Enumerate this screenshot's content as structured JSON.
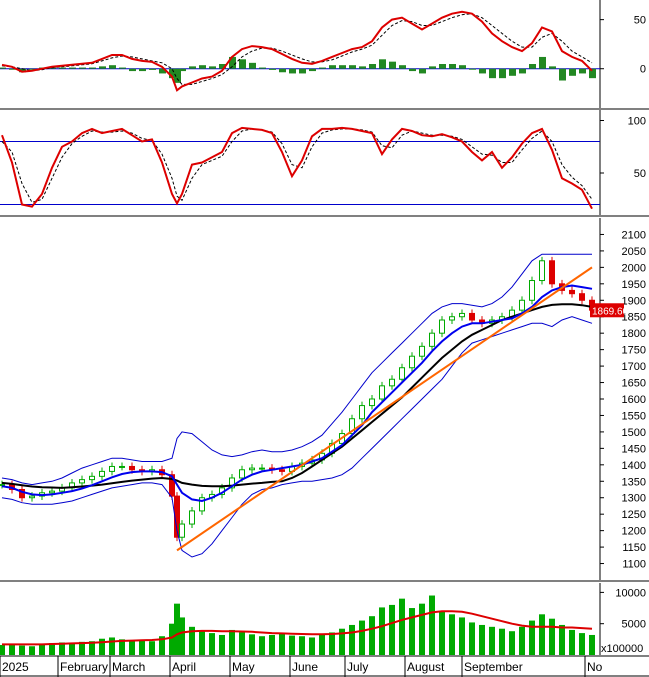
{
  "chart_data": [
    {
      "panel": "macd",
      "type": "line",
      "y_ticks": [
        50,
        0
      ],
      "ylim": [
        -40,
        70
      ],
      "series": [],
      "x": [
        0,
        10,
        20,
        30,
        40,
        50,
        60,
        70,
        80,
        90,
        100,
        110,
        120,
        130,
        140,
        150,
        160,
        170,
        175,
        180,
        190,
        200,
        210,
        220,
        230,
        240,
        250,
        260,
        270,
        280,
        290,
        300,
        310,
        320,
        330,
        340,
        350,
        360,
        370,
        380,
        390,
        400,
        410,
        420,
        430,
        440,
        450,
        460,
        470,
        480,
        490,
        500,
        510,
        520,
        530,
        540,
        550,
        560,
        570,
        580,
        590
      ],
      "macd": [
        4,
        2,
        -3,
        -2,
        0,
        2,
        3,
        4,
        5,
        6,
        10,
        14,
        14,
        10,
        8,
        7,
        2,
        -8,
        -22,
        -18,
        -14,
        -10,
        -8,
        -2,
        12,
        20,
        23,
        22,
        20,
        15,
        10,
        6,
        5,
        8,
        12,
        16,
        20,
        22,
        28,
        42,
        50,
        52,
        46,
        40,
        46,
        52,
        56,
        58,
        56,
        48,
        36,
        28,
        22,
        18,
        26,
        42,
        38,
        18,
        12,
        8,
        -2
      ],
      "signal": [
        3,
        2,
        0,
        -2,
        -1,
        1,
        2,
        3,
        4,
        5,
        8,
        11,
        13,
        12,
        10,
        8,
        6,
        0,
        -10,
        -16,
        -16,
        -13,
        -10,
        -6,
        2,
        12,
        18,
        21,
        21,
        18,
        14,
        10,
        7,
        7,
        9,
        13,
        17,
        20,
        24,
        34,
        44,
        49,
        48,
        44,
        44,
        48,
        52,
        55,
        56,
        52,
        44,
        36,
        28,
        22,
        22,
        32,
        36,
        28,
        18,
        12,
        6
      ]
    },
    {
      "panel": "stochastic",
      "type": "line",
      "y_ticks": [
        100,
        50
      ],
      "ylim": [
        10,
        110
      ],
      "ref_lines": [
        80,
        20
      ],
      "series": [],
      "x": [
        0,
        10,
        20,
        30,
        40,
        50,
        60,
        70,
        80,
        90,
        100,
        110,
        120,
        130,
        140,
        150,
        160,
        170,
        175,
        180,
        190,
        200,
        210,
        220,
        230,
        240,
        250,
        260,
        270,
        280,
        290,
        300,
        310,
        320,
        330,
        340,
        350,
        360,
        370,
        380,
        390,
        400,
        410,
        420,
        430,
        440,
        450,
        460,
        470,
        480,
        490,
        500,
        510,
        520,
        530,
        540,
        550,
        560,
        570,
        580,
        590
      ],
      "k": [
        86,
        60,
        20,
        18,
        30,
        55,
        75,
        80,
        88,
        92,
        88,
        90,
        92,
        86,
        80,
        82,
        60,
        30,
        21,
        30,
        58,
        60,
        65,
        70,
        88,
        93,
        92,
        91,
        88,
        70,
        47,
        62,
        85,
        92,
        92,
        93,
        92,
        90,
        88,
        68,
        82,
        92,
        90,
        86,
        85,
        87,
        84,
        80,
        70,
        62,
        70,
        55,
        65,
        78,
        88,
        92,
        72,
        45,
        40,
        34,
        16
      ],
      "d": [
        80,
        70,
        40,
        22,
        25,
        45,
        65,
        78,
        85,
        90,
        89,
        89,
        90,
        88,
        83,
        81,
        68,
        45,
        28,
        24,
        45,
        58,
        62,
        66,
        80,
        90,
        92,
        91,
        89,
        78,
        58,
        55,
        75,
        88,
        91,
        92,
        92,
        91,
        89,
        76,
        74,
        86,
        90,
        88,
        86,
        86,
        85,
        82,
        75,
        68,
        67,
        60,
        60,
        72,
        83,
        90,
        80,
        58,
        46,
        38,
        25
      ]
    },
    {
      "panel": "price",
      "type": "candlestick",
      "y_ticks": [
        2100,
        2050,
        2000,
        1950,
        1900,
        1850,
        1800,
        1750,
        1700,
        1650,
        1600,
        1550,
        1500,
        1450,
        1400,
        1350,
        1300,
        1250,
        1200,
        1150,
        1100
      ],
      "ylim": [
        1050,
        2150
      ],
      "last_value": "1869.60",
      "x": [
        0,
        10,
        20,
        30,
        40,
        50,
        60,
        70,
        80,
        90,
        100,
        110,
        120,
        130,
        140,
        150,
        160,
        170,
        175,
        180,
        190,
        200,
        210,
        220,
        230,
        240,
        250,
        260,
        270,
        280,
        290,
        300,
        310,
        320,
        330,
        340,
        350,
        360,
        370,
        380,
        390,
        400,
        410,
        420,
        430,
        440,
        450,
        460,
        470,
        480,
        490,
        500,
        510,
        520,
        530,
        540,
        550,
        560,
        570,
        580,
        590
      ],
      "close": [
        1340,
        1325,
        1300,
        1305,
        1315,
        1320,
        1330,
        1345,
        1355,
        1365,
        1380,
        1395,
        1395,
        1385,
        1380,
        1385,
        1370,
        1305,
        1180,
        1220,
        1260,
        1300,
        1310,
        1330,
        1360,
        1385,
        1390,
        1390,
        1385,
        1380,
        1395,
        1405,
        1415,
        1435,
        1465,
        1495,
        1540,
        1580,
        1600,
        1640,
        1660,
        1695,
        1730,
        1760,
        1800,
        1840,
        1850,
        1860,
        1840,
        1830,
        1840,
        1850,
        1870,
        1900,
        1960,
        2020,
        1950,
        1930,
        1920,
        1900,
        1870
      ],
      "ma20": [
        1335,
        1330,
        1318,
        1310,
        1308,
        1310,
        1315,
        1320,
        1328,
        1338,
        1350,
        1362,
        1372,
        1378,
        1380,
        1380,
        1378,
        1365,
        1340,
        1315,
        1295,
        1290,
        1300,
        1315,
        1335,
        1355,
        1370,
        1380,
        1385,
        1390,
        1395,
        1400,
        1410,
        1420,
        1440,
        1460,
        1490,
        1520,
        1560,
        1590,
        1620,
        1650,
        1680,
        1710,
        1745,
        1775,
        1800,
        1820,
        1830,
        1830,
        1835,
        1840,
        1845,
        1860,
        1880,
        1910,
        1930,
        1940,
        1945,
        1940,
        1935
      ],
      "ma50": [
        1345,
        1342,
        1338,
        1334,
        1332,
        1331,
        1330,
        1332,
        1334,
        1337,
        1340,
        1344,
        1348,
        1352,
        1355,
        1358,
        1360,
        1357,
        1352,
        1345,
        1340,
        1336,
        1335,
        1335,
        1337,
        1340,
        1343,
        1345,
        1348,
        1350,
        1360,
        1375,
        1395,
        1415,
        1435,
        1455,
        1480,
        1505,
        1530,
        1555,
        1580,
        1605,
        1635,
        1665,
        1695,
        1725,
        1750,
        1775,
        1795,
        1810,
        1825,
        1840,
        1850,
        1860,
        1870,
        1880,
        1886,
        1888,
        1888,
        1885,
        1880
      ],
      "bb_upper": [
        1360,
        1355,
        1345,
        1340,
        1345,
        1350,
        1360,
        1375,
        1390,
        1400,
        1410,
        1420,
        1420,
        1415,
        1410,
        1410,
        1410,
        1420,
        1480,
        1500,
        1495,
        1470,
        1445,
        1430,
        1425,
        1430,
        1440,
        1445,
        1440,
        1440,
        1445,
        1455,
        1470,
        1490,
        1525,
        1560,
        1600,
        1640,
        1680,
        1710,
        1740,
        1770,
        1800,
        1830,
        1860,
        1880,
        1890,
        1890,
        1885,
        1880,
        1890,
        1910,
        1940,
        1980,
        2020,
        2040,
        2040,
        2040,
        2040,
        2040,
        2040
      ],
      "bb_lower": [
        1300,
        1295,
        1285,
        1280,
        1280,
        1280,
        1285,
        1290,
        1300,
        1310,
        1320,
        1330,
        1335,
        1340,
        1345,
        1345,
        1340,
        1300,
        1200,
        1140,
        1120,
        1130,
        1160,
        1200,
        1240,
        1280,
        1310,
        1325,
        1330,
        1340,
        1345,
        1350,
        1350,
        1355,
        1360,
        1370,
        1390,
        1420,
        1450,
        1480,
        1510,
        1540,
        1570,
        1600,
        1630,
        1660,
        1700,
        1740,
        1770,
        1780,
        1790,
        1800,
        1810,
        1820,
        1830,
        1830,
        1820,
        1840,
        1850,
        1840,
        1830
      ],
      "trendline": [
        [
          175,
          1140
        ],
        [
          590,
          2000
        ]
      ]
    },
    {
      "panel": "volume",
      "type": "bar",
      "y_ticks": [
        10000,
        5000
      ],
      "ylim": [
        0,
        11500
      ],
      "unit_label": "x100000",
      "x": [
        0,
        10,
        20,
        30,
        40,
        50,
        60,
        70,
        80,
        90,
        100,
        110,
        120,
        130,
        140,
        150,
        160,
        170,
        175,
        180,
        190,
        200,
        210,
        220,
        230,
        240,
        250,
        260,
        270,
        280,
        290,
        300,
        310,
        320,
        330,
        340,
        350,
        360,
        370,
        380,
        390,
        400,
        410,
        420,
        430,
        440,
        450,
        460,
        470,
        480,
        490,
        500,
        510,
        520,
        530,
        540,
        550,
        560,
        570,
        580,
        590
      ],
      "values": [
        1600,
        1800,
        1500,
        1400,
        1700,
        1900,
        2000,
        1800,
        2100,
        2200,
        2600,
        2800,
        2500,
        2300,
        2400,
        2200,
        3000,
        5000,
        8200,
        6000,
        4500,
        3800,
        3500,
        3200,
        4000,
        3600,
        3300,
        3000,
        3200,
        3400,
        3100,
        3000,
        2800,
        3200,
        3600,
        4200,
        4800,
        5500,
        6200,
        7600,
        8000,
        9000,
        7500,
        8200,
        9500,
        7000,
        6500,
        6000,
        5200,
        4800,
        4500,
        4200,
        3800,
        4500,
        5500,
        6500,
        5800,
        4800,
        4000,
        3500,
        3200
      ],
      "avg": [
        1700,
        1700,
        1700,
        1700,
        1700,
        1750,
        1800,
        1850,
        1900,
        1950,
        2050,
        2150,
        2250,
        2300,
        2350,
        2400,
        2500,
        2800,
        3300,
        3600,
        3800,
        3850,
        3850,
        3800,
        3800,
        3750,
        3700,
        3600,
        3500,
        3450,
        3400,
        3350,
        3300,
        3300,
        3350,
        3450,
        3600,
        3850,
        4200,
        4600,
        5100,
        5600,
        6000,
        6400,
        6800,
        7000,
        7000,
        6900,
        6600,
        6200,
        5800,
        5400,
        5000,
        4700,
        4500,
        4500,
        4500,
        4400,
        4400,
        4300,
        4200
      ]
    }
  ],
  "x_axis": {
    "labels": [
      "2025",
      "February",
      "March",
      "April",
      "May",
      "June",
      "July",
      "August",
      "September",
      "No"
    ],
    "label_x": [
      0,
      58,
      110,
      170,
      230,
      290,
      345,
      405,
      462,
      585
    ]
  },
  "colors": {
    "up": "#00aa00",
    "down": "#dd0000",
    "macd_line": "#dd0000",
    "stoch_line": "#dd0000",
    "ref_line": "#0000cc",
    "ma20": "#0000ee",
    "ma50": "#000000",
    "bands": "#0000cc",
    "trendline": "#ff6600",
    "volume_bar": "#00aa00",
    "volume_avg": "#dd0000",
    "last_value_bg": "#dd0000"
  }
}
